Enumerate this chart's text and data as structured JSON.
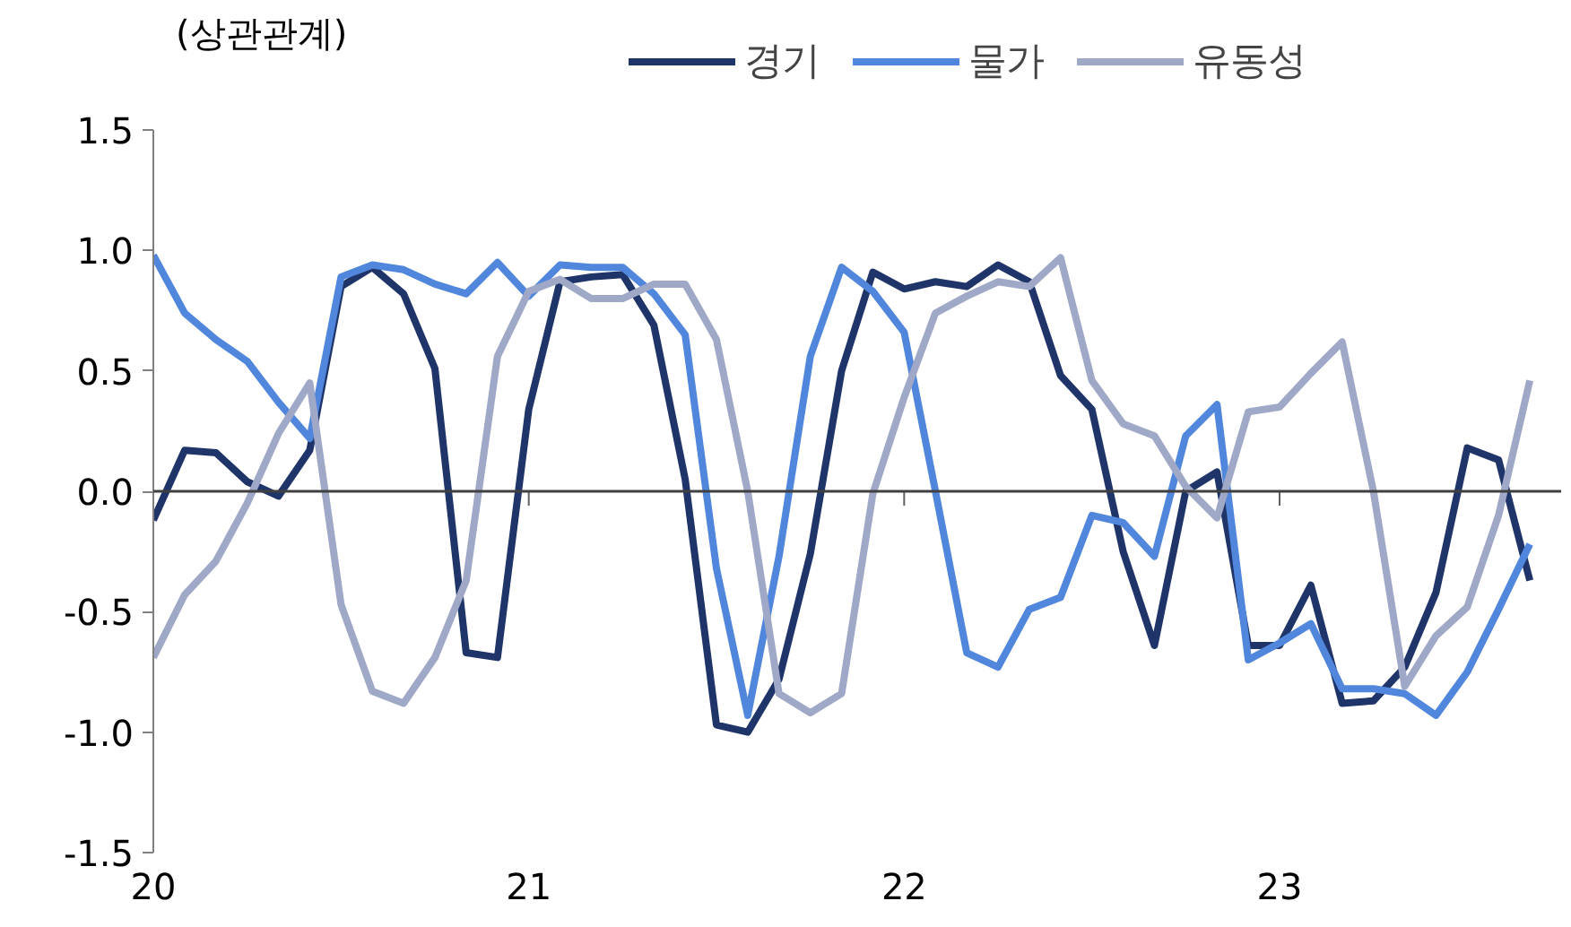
{
  "chart_data": {
    "type": "line",
    "annotations": [
      "(상관관계)"
    ],
    "x": [
      "2020-01",
      "2020-02",
      "2020-03",
      "2020-04",
      "2020-05",
      "2020-06",
      "2020-07",
      "2020-08",
      "2020-09",
      "2020-10",
      "2020-11",
      "2020-12",
      "2021-01",
      "2021-02",
      "2021-03",
      "2021-04",
      "2021-05",
      "2021-06",
      "2021-07",
      "2021-08",
      "2021-09",
      "2021-10",
      "2021-11",
      "2021-12",
      "2022-01",
      "2022-02",
      "2022-03",
      "2022-04",
      "2022-05",
      "2022-06",
      "2022-07",
      "2022-08",
      "2022-09",
      "2022-10",
      "2022-11",
      "2022-12",
      "2023-01",
      "2023-02",
      "2023-03",
      "2023-04",
      "2023-05",
      "2023-06",
      "2023-07",
      "2023-08",
      "2023-09"
    ],
    "series": [
      {
        "name": "경기",
        "color": "#1f3468",
        "values": [
          -0.12,
          0.17,
          0.16,
          0.04,
          -0.02,
          0.17,
          0.85,
          0.93,
          0.82,
          0.51,
          -0.67,
          -0.69,
          0.34,
          0.87,
          0.89,
          0.9,
          0.69,
          0.05,
          -0.97,
          -1.0,
          -0.78,
          -0.26,
          0.5,
          0.91,
          0.84,
          0.87,
          0.85,
          0.94,
          0.87,
          0.48,
          0.34,
          -0.25,
          -0.64,
          0.0,
          0.08,
          -0.64,
          -0.64,
          -0.39,
          -0.88,
          -0.87,
          -0.73,
          -0.42,
          0.18,
          0.13,
          -0.37
        ]
      },
      {
        "name": "물가",
        "color": "#5086dc",
        "values": [
          0.98,
          0.74,
          0.63,
          0.54,
          0.37,
          0.22,
          0.89,
          0.94,
          0.92,
          0.86,
          0.82,
          0.95,
          0.81,
          0.94,
          0.93,
          0.93,
          0.82,
          0.65,
          -0.32,
          -0.93,
          -0.27,
          0.56,
          0.93,
          0.83,
          0.66,
          0.0,
          -0.67,
          -0.73,
          -0.49,
          -0.44,
          -0.1,
          -0.13,
          -0.27,
          0.23,
          0.36,
          -0.7,
          -0.63,
          -0.55,
          -0.82,
          -0.82,
          -0.84,
          -0.93,
          -0.75,
          -0.49,
          -0.22
        ]
      },
      {
        "name": "유동성",
        "color": "#a0a8c8",
        "values": [
          -0.69,
          -0.43,
          -0.29,
          -0.05,
          0.24,
          0.45,
          -0.47,
          -0.83,
          -0.88,
          -0.69,
          -0.37,
          0.56,
          0.83,
          0.88,
          0.8,
          0.8,
          0.86,
          0.86,
          0.63,
          0.0,
          -0.84,
          -0.92,
          -0.84,
          -0.01,
          0.39,
          0.74,
          0.81,
          0.87,
          0.85,
          0.97,
          0.46,
          0.28,
          0.23,
          0.02,
          -0.11,
          0.33,
          0.35,
          0.49,
          0.62,
          0.0,
          -0.81,
          -0.6,
          -0.48,
          -0.1,
          0.46
        ]
      }
    ],
    "xlim": [
      "2020-01",
      "2023-10"
    ],
    "xticks": [
      {
        "value": "2020-01",
        "label": "20"
      },
      {
        "value": "2021-01",
        "label": "21"
      },
      {
        "value": "2022-01",
        "label": "22"
      },
      {
        "value": "2023-01",
        "label": "23"
      }
    ],
    "ylim": [
      -1.5,
      1.5
    ],
    "yticks": [
      1.5,
      {
        "value": 1,
        "label": "1.0"
      },
      {
        "value": 0.5,
        "label": "0.5"
      },
      {
        "value": 0,
        "label": "0.0"
      },
      {
        "value": -0.5,
        "label": "-0.5"
      },
      {
        "value": -1,
        "label": "-1.0"
      },
      -1.5
    ],
    "ref_lines": [
      {
        "axis": "y",
        "value": 0,
        "color": "#404040"
      }
    ],
    "grid": false,
    "legend": "top",
    "marker": "none",
    "line_style": "solid"
  }
}
